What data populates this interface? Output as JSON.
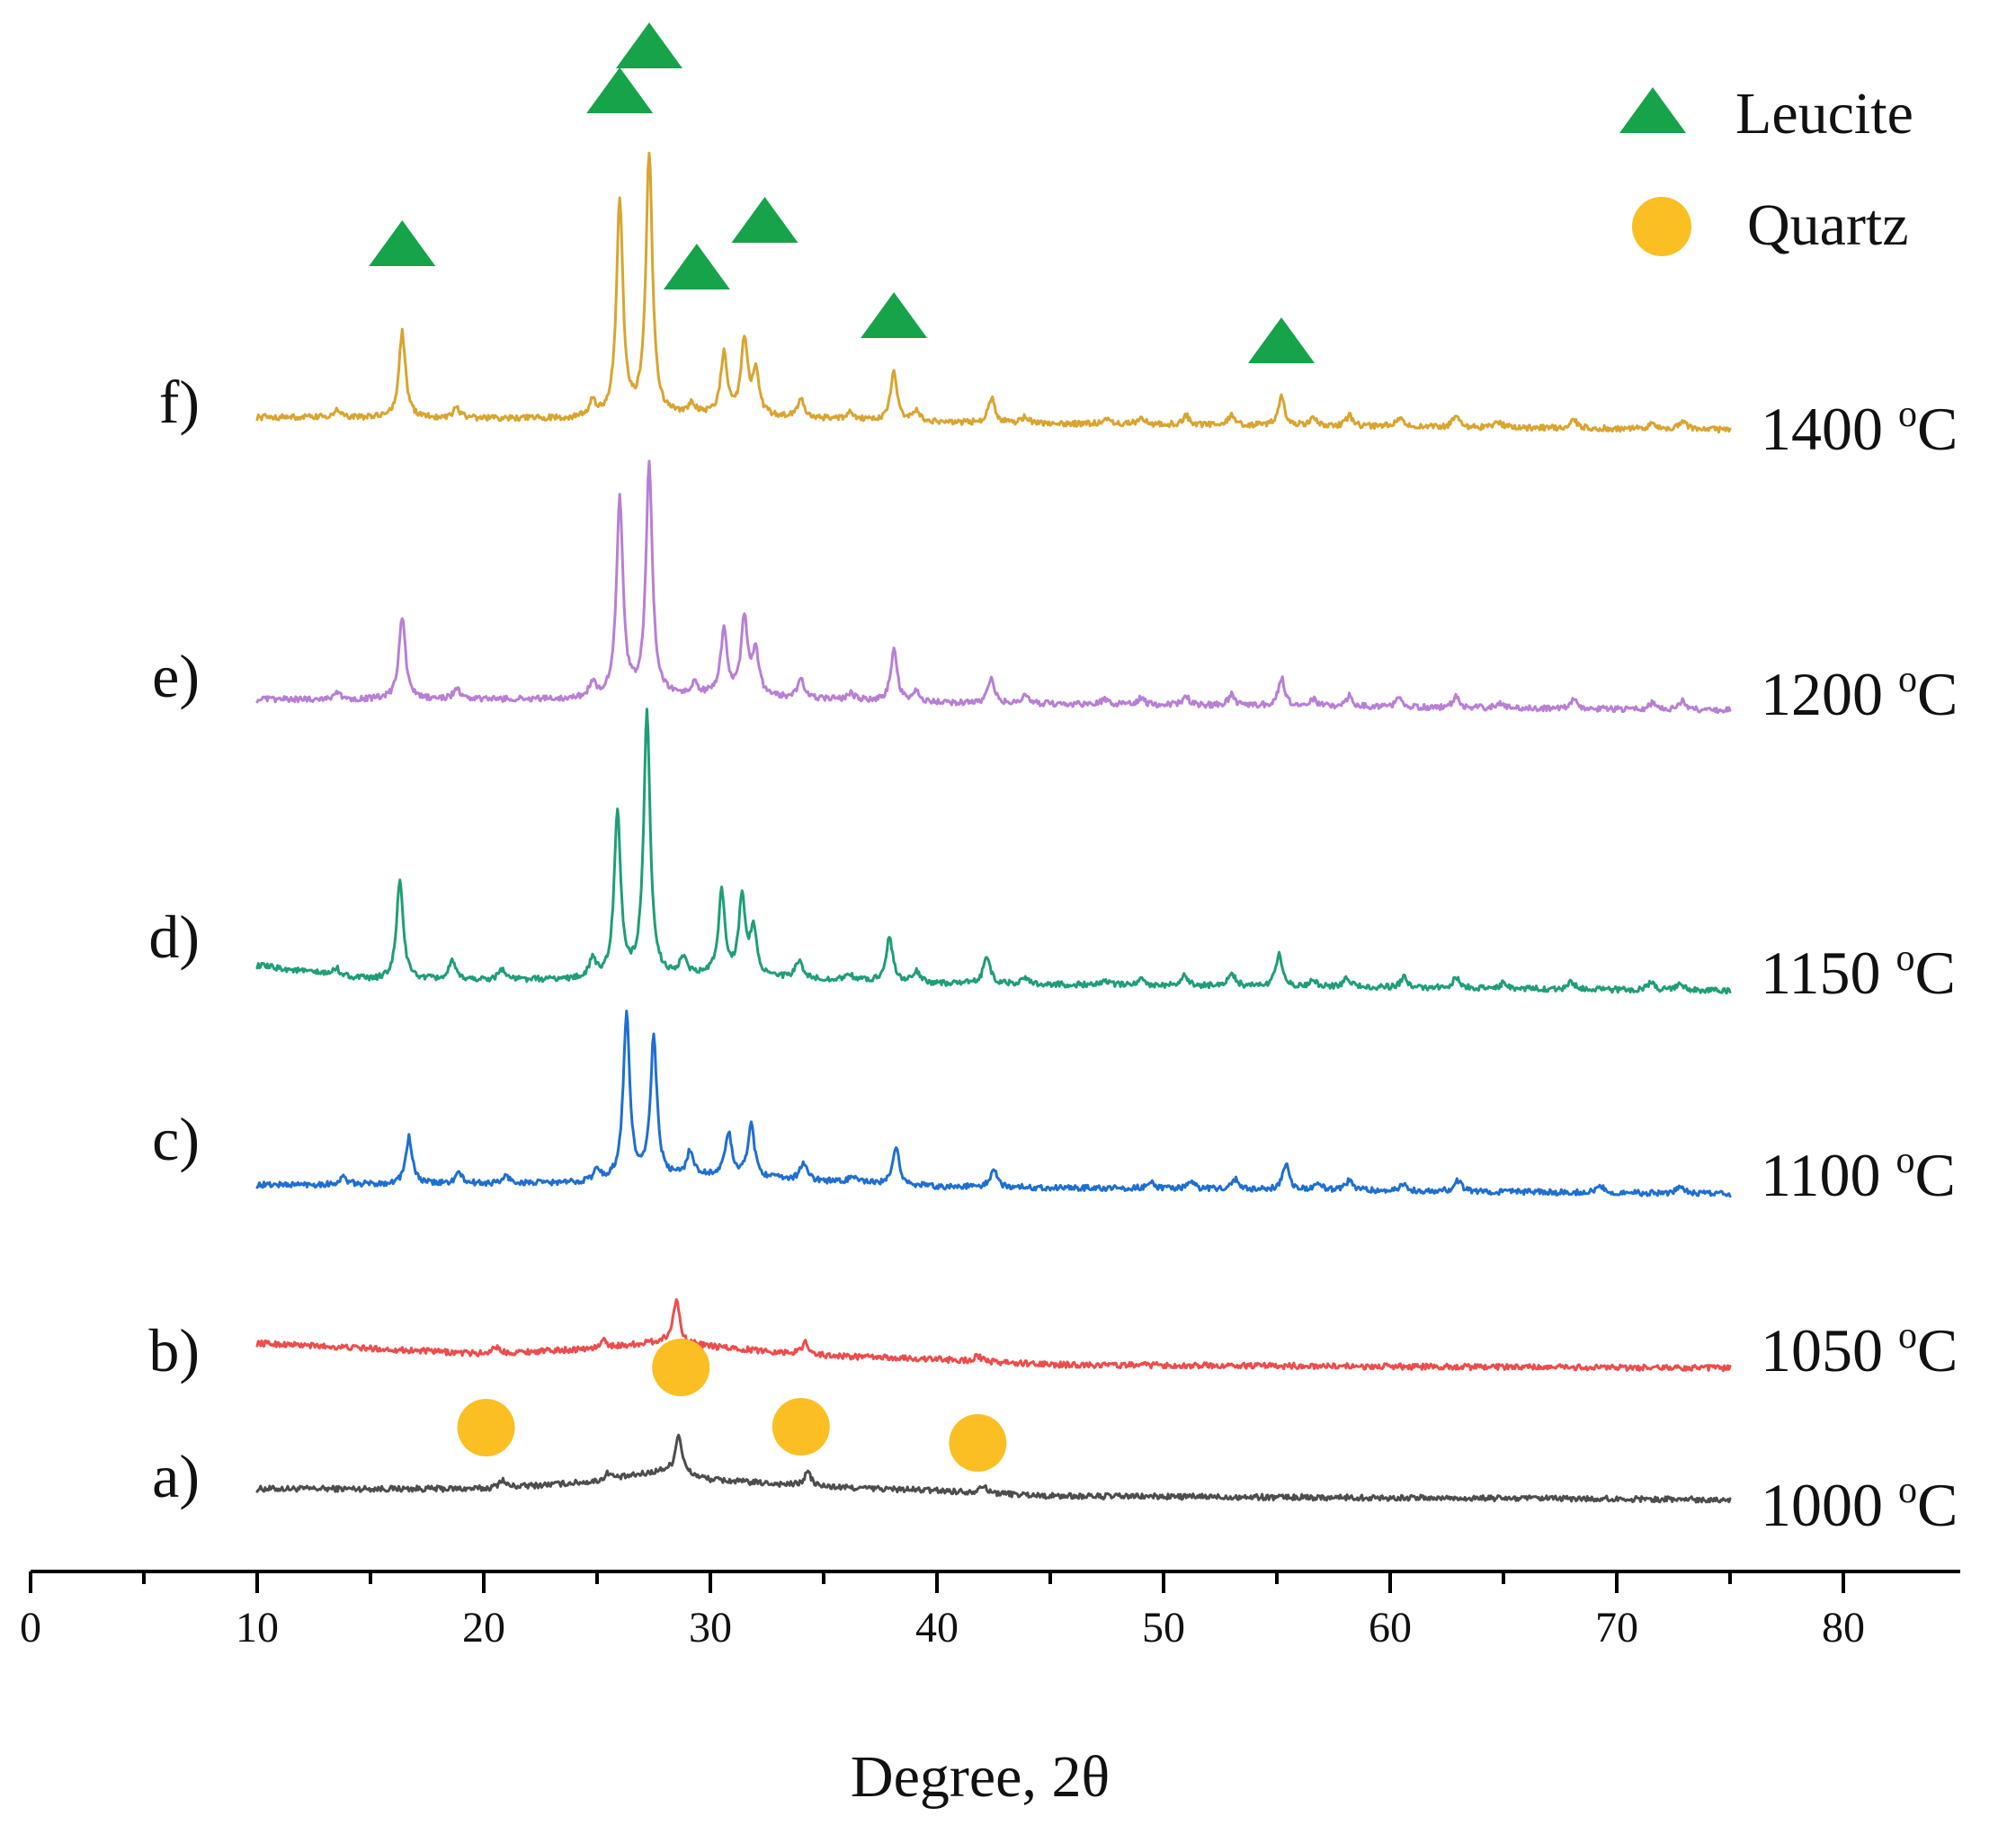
{
  "chart_data": {
    "type": "line",
    "title": "",
    "xlabel": "Degree, 2θ",
    "ylabel": "",
    "xlim": [
      0,
      85
    ],
    "x_ticks": [
      0,
      10,
      20,
      30,
      40,
      50,
      60,
      70,
      80
    ],
    "x_range_measured": [
      10,
      75
    ],
    "stacked_offset": true,
    "grid": false,
    "series": [
      {
        "name": "a)",
        "temperature": "1000",
        "unit": "oC",
        "color": "#4d4d4d",
        "baseline": [
          [
            10,
            0.3
          ],
          [
            20,
            0.3
          ],
          [
            25,
            0.5
          ],
          [
            28,
            0.8
          ],
          [
            30,
            0.55
          ],
          [
            35,
            0.35
          ],
          [
            40,
            0.25
          ],
          [
            45,
            0.1
          ],
          [
            75,
            0.0
          ]
        ],
        "peaks": [
          [
            20.8,
            0.22
          ],
          [
            25.5,
            0.2
          ],
          [
            28.6,
            1.1
          ],
          [
            34.3,
            0.4
          ],
          [
            42.0,
            0.22
          ]
        ]
      },
      {
        "name": "b)",
        "temperature": "1050",
        "unit": "oC",
        "color": "#ee4c4c",
        "baseline": [
          [
            10,
            0.7
          ],
          [
            20,
            0.4
          ],
          [
            25,
            0.55
          ],
          [
            28,
            0.75
          ],
          [
            30,
            0.6
          ],
          [
            35,
            0.35
          ],
          [
            40,
            0.25
          ],
          [
            45,
            0.1
          ],
          [
            75,
            0.0
          ]
        ],
        "peaks": [
          [
            20.5,
            0.2
          ],
          [
            25.3,
            0.2
          ],
          [
            28.5,
            1.2
          ],
          [
            34.2,
            0.35
          ],
          [
            41.8,
            0.15
          ]
        ]
      },
      {
        "name": "c)",
        "temperature": "1100",
        "unit": "oC",
        "color": "#1e6fd1",
        "baseline": [
          [
            10,
            0.25
          ],
          [
            24,
            0.3
          ],
          [
            30,
            0.5
          ],
          [
            40,
            0.2
          ],
          [
            75,
            0.0
          ]
        ],
        "peaks": [
          [
            13.8,
            0.2
          ],
          [
            16.7,
            1.3
          ],
          [
            18.9,
            0.3
          ],
          [
            21.0,
            0.2
          ],
          [
            25.0,
            0.3
          ],
          [
            26.3,
            4.6
          ],
          [
            27.5,
            3.9
          ],
          [
            29.1,
            0.7
          ],
          [
            30.8,
            1.2
          ],
          [
            31.8,
            1.5
          ],
          [
            34.1,
            0.5
          ],
          [
            36.3,
            0.2
          ],
          [
            38.2,
            1.0
          ],
          [
            42.5,
            0.5
          ],
          [
            49.4,
            0.2
          ],
          [
            51.2,
            0.2
          ],
          [
            53.2,
            0.3
          ],
          [
            55.4,
            0.7
          ],
          [
            56.8,
            0.2
          ],
          [
            58.2,
            0.3
          ],
          [
            60.6,
            0.2
          ],
          [
            63.0,
            0.3
          ],
          [
            69.3,
            0.2
          ],
          [
            72.8,
            0.2
          ]
        ]
      },
      {
        "name": "d)",
        "temperature": "1150",
        "unit": "oC",
        "color": "#1f9e78",
        "baseline": [
          [
            10,
            0.7
          ],
          [
            15,
            0.3
          ],
          [
            24,
            0.3
          ],
          [
            30,
            0.4
          ],
          [
            40,
            0.2
          ],
          [
            75,
            0.0
          ]
        ],
        "peaks": [
          [
            13.5,
            0.2
          ],
          [
            16.3,
            2.8
          ],
          [
            18.6,
            0.5
          ],
          [
            20.8,
            0.3
          ],
          [
            24.8,
            0.5
          ],
          [
            25.9,
            4.6
          ],
          [
            27.2,
            7.3
          ],
          [
            28.8,
            0.5
          ],
          [
            30.5,
            2.3
          ],
          [
            31.4,
            2.2
          ],
          [
            31.9,
            1.3
          ],
          [
            33.9,
            0.5
          ],
          [
            36.1,
            0.2
          ],
          [
            37.9,
            1.3
          ],
          [
            39.1,
            0.3
          ],
          [
            42.2,
            0.8
          ],
          [
            43.9,
            0.2
          ],
          [
            47.4,
            0.15
          ],
          [
            49.0,
            0.2
          ],
          [
            50.9,
            0.3
          ],
          [
            53.0,
            0.4
          ],
          [
            55.1,
            0.9
          ],
          [
            56.6,
            0.2
          ],
          [
            58.1,
            0.3
          ],
          [
            60.6,
            0.3
          ],
          [
            62.9,
            0.3
          ],
          [
            65.0,
            0.15
          ],
          [
            68.0,
            0.2
          ],
          [
            71.5,
            0.2
          ],
          [
            72.8,
            0.2
          ]
        ]
      },
      {
        "name": "e)",
        "temperature": "1200",
        "unit": "oC",
        "color": "#b87fd4",
        "baseline": [
          [
            10,
            0.3
          ],
          [
            24,
            0.3
          ],
          [
            30,
            0.4
          ],
          [
            40,
            0.2
          ],
          [
            75,
            0.0
          ]
        ],
        "peaks": [
          [
            13.5,
            0.2
          ],
          [
            16.4,
            2.3
          ],
          [
            18.8,
            0.3
          ],
          [
            24.8,
            0.4
          ],
          [
            26.0,
            5.5
          ],
          [
            27.3,
            6.4
          ],
          [
            29.3,
            0.3
          ],
          [
            30.6,
            1.8
          ],
          [
            31.5,
            2.1
          ],
          [
            32.0,
            1.2
          ],
          [
            34.0,
            0.5
          ],
          [
            36.2,
            0.2
          ],
          [
            38.1,
            1.4
          ],
          [
            39.1,
            0.3
          ],
          [
            42.4,
            0.7
          ],
          [
            43.9,
            0.2
          ],
          [
            47.4,
            0.15
          ],
          [
            49.0,
            0.2
          ],
          [
            51.0,
            0.25
          ],
          [
            53.0,
            0.3
          ],
          [
            55.2,
            0.8
          ],
          [
            56.6,
            0.2
          ],
          [
            58.2,
            0.3
          ],
          [
            60.4,
            0.25
          ],
          [
            62.9,
            0.3
          ],
          [
            64.8,
            0.15
          ],
          [
            68.1,
            0.25
          ],
          [
            71.6,
            0.2
          ],
          [
            72.9,
            0.25
          ]
        ]
      },
      {
        "name": "f)",
        "temperature": "1400",
        "unit": "oC",
        "color": "#d9a42f",
        "baseline": [
          [
            10,
            0.35
          ],
          [
            24,
            0.3
          ],
          [
            30,
            0.4
          ],
          [
            40,
            0.2
          ],
          [
            75,
            0.0
          ]
        ],
        "peaks": [
          [
            13.5,
            0.2
          ],
          [
            16.4,
            2.4
          ],
          [
            18.8,
            0.3
          ],
          [
            24.8,
            0.4
          ],
          [
            26.0,
            6.0
          ],
          [
            27.3,
            7.3
          ],
          [
            29.2,
            0.3
          ],
          [
            30.6,
            1.7
          ],
          [
            31.5,
            2.1
          ],
          [
            32.0,
            1.2
          ],
          [
            34.0,
            0.5
          ],
          [
            36.2,
            0.2
          ],
          [
            38.1,
            1.4
          ],
          [
            39.1,
            0.3
          ],
          [
            42.4,
            0.7
          ],
          [
            43.9,
            0.2
          ],
          [
            47.4,
            0.15
          ],
          [
            49.0,
            0.2
          ],
          [
            51.0,
            0.25
          ],
          [
            53.0,
            0.3
          ],
          [
            55.2,
            0.8
          ],
          [
            56.6,
            0.2
          ],
          [
            58.2,
            0.3
          ],
          [
            60.4,
            0.25
          ],
          [
            62.9,
            0.3
          ],
          [
            64.8,
            0.15
          ],
          [
            68.1,
            0.25
          ],
          [
            71.6,
            0.2
          ],
          [
            72.9,
            0.25
          ]
        ]
      }
    ],
    "legend": [
      {
        "label": "Leucite",
        "marker": "triangle",
        "color": "#16a34a"
      },
      {
        "label": "Quartz",
        "marker": "circle",
        "color": "#fbbf24"
      }
    ],
    "annotations": {
      "leucite_peak_positions": [
        16.4,
        26.0,
        27.3,
        29.4,
        32.4,
        38.1,
        55.2
      ],
      "quartz_peak_positions": [
        20.1,
        28.7,
        34.0,
        41.8
      ]
    }
  }
}
